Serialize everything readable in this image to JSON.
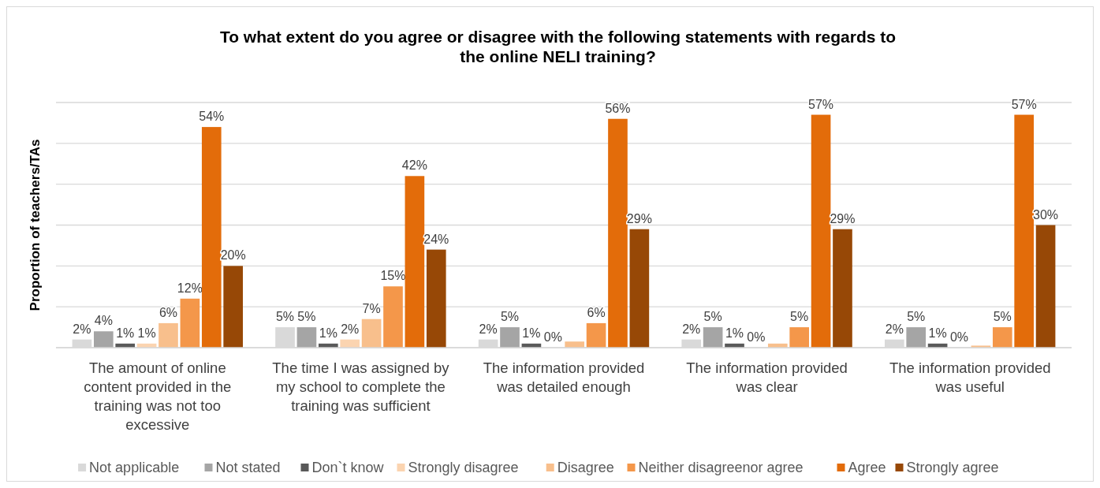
{
  "chart_data": {
    "type": "bar",
    "title": "To what extent do you agree or disagree with the following statements with regards to the online NELI training?",
    "ylabel": "Proportion of teachers/TAs",
    "categories": [
      "The amount of online content provided in the training was not too excessive",
      "The time I was assigned by my school to complete the training was sufficient",
      "The information provided was detailed enough",
      "The information provided was clear",
      "The information provided was useful"
    ],
    "series": [
      {
        "name": "Not applicable",
        "color": "#d9d9d9",
        "values": [
          2,
          5,
          2,
          2,
          2
        ],
        "value_labels": [
          "2%",
          "5%",
          "2%",
          "2%",
          "2%"
        ]
      },
      {
        "name": "Not stated",
        "color": "#a5a5a5",
        "values": [
          4,
          5,
          5,
          5,
          5
        ],
        "value_labels": [
          "4%",
          "5%",
          "5%",
          "5%",
          "5%"
        ]
      },
      {
        "name": "Don`t know",
        "color": "#595959",
        "values": [
          1,
          1,
          1,
          1,
          1
        ],
        "value_labels": [
          "1%",
          "1%",
          "1%",
          "1%",
          "1%"
        ]
      },
      {
        "name": "Strongly disagree",
        "color": "#fbd4b0",
        "values": [
          1,
          2,
          0,
          0,
          0
        ],
        "value_labels": [
          "1%",
          "2%",
          "0%",
          "0%",
          "0%"
        ]
      },
      {
        "name": "Disagree",
        "color": "#f8bf8c",
        "values": [
          6,
          7,
          1.5,
          1,
          0.5
        ],
        "value_labels": [
          "6%",
          "7%",
          null,
          null,
          null
        ]
      },
      {
        "name": "Neither disagreenor agree",
        "color": "#f4974a",
        "values": [
          12,
          15,
          6,
          5,
          5
        ],
        "value_labels": [
          "12%",
          "15%",
          "6%",
          "5%",
          "5%"
        ]
      },
      {
        "name": "Agree",
        "color": "#e36c0a",
        "values": [
          54,
          42,
          56,
          57,
          57
        ],
        "value_labels": [
          "54%",
          "42%",
          "56%",
          "57%",
          "57%"
        ]
      },
      {
        "name": "Strongly agree",
        "color": "#974806",
        "values": [
          20,
          24,
          29,
          29,
          30
        ],
        "value_labels": [
          "20%",
          "24%",
          "29%",
          "29%",
          "30%"
        ]
      }
    ],
    "ylim": [
      0,
      60
    ],
    "yticks": [
      {
        "value": 0,
        "label": null
      },
      {
        "value": 10,
        "label": null
      },
      {
        "value": 20,
        "label": null
      },
      {
        "value": 30,
        "label": null
      },
      {
        "value": 40,
        "label": null
      },
      {
        "value": 50,
        "label": null
      },
      {
        "value": 60,
        "label": null
      }
    ],
    "grid": "y",
    "legend": "bottom",
    "tick_labels": "x"
  }
}
